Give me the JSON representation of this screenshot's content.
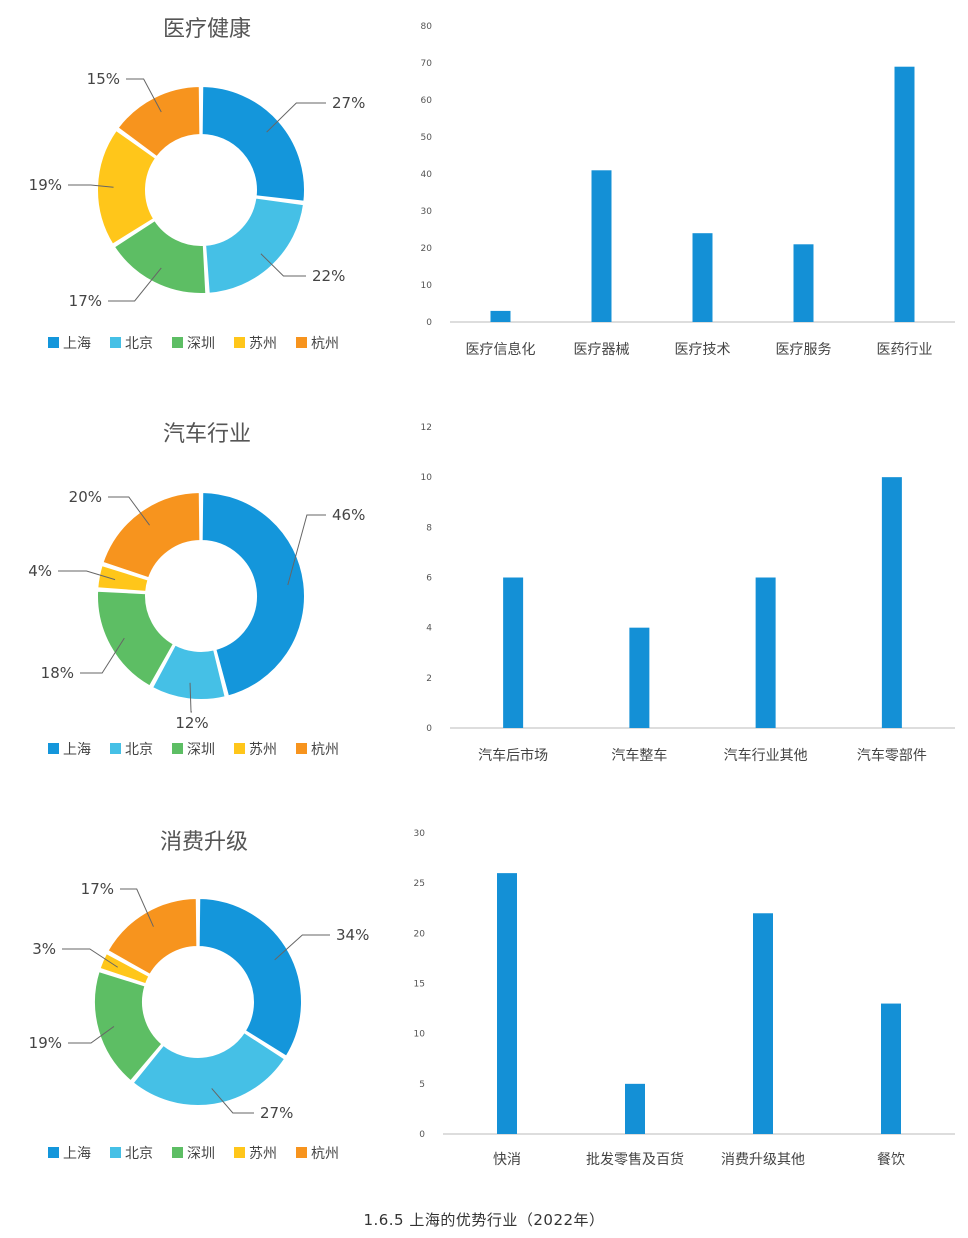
{
  "legend": [
    "上海",
    "北京",
    "深圳",
    "苏州",
    "杭州"
  ],
  "colors": {
    "上海": "#1496DB",
    "北京": "#45C0E6",
    "深圳": "#5DBE64",
    "苏州": "#FFC61A",
    "杭州": "#F7941E",
    "bar": "#1490D6"
  },
  "caption": "1.6.5   上海的优势行业（2022年）",
  "chart_data": [
    {
      "type": "pie",
      "title": "医疗健康",
      "categories": [
        "上海",
        "北京",
        "深圳",
        "苏州",
        "杭州"
      ],
      "values": [
        27,
        22,
        17,
        19,
        15
      ],
      "labels": [
        "27%",
        "22%",
        "17%",
        "19%",
        "15%"
      ]
    },
    {
      "type": "bar",
      "categories": [
        "医疗信息化",
        "医疗器械",
        "医疗技术",
        "医疗服务",
        "医药行业"
      ],
      "values": [
        3,
        41,
        24,
        21,
        69
      ],
      "ylim": [
        0,
        80
      ],
      "yticks": [
        "0",
        "10",
        "20",
        "30",
        "40",
        "50",
        "60",
        "70",
        "80"
      ]
    },
    {
      "type": "pie",
      "title": "汽车行业",
      "categories": [
        "上海",
        "北京",
        "深圳",
        "苏州",
        "杭州"
      ],
      "values": [
        46,
        12,
        18,
        4,
        20
      ],
      "labels": [
        "46%",
        "12%",
        "18%",
        "4%",
        "20%"
      ]
    },
    {
      "type": "bar",
      "categories": [
        "汽车后市场",
        "汽车整车",
        "汽车行业其他",
        "汽车零部件"
      ],
      "values": [
        6,
        4,
        6,
        10
      ],
      "ylim": [
        0,
        12
      ],
      "yticks": [
        "0",
        "2",
        "4",
        "6",
        "8",
        "10",
        "12"
      ]
    },
    {
      "type": "pie",
      "title": "消费升级",
      "categories": [
        "上海",
        "北京",
        "深圳",
        "苏州",
        "杭州"
      ],
      "values": [
        34,
        27,
        19,
        3,
        17
      ],
      "labels": [
        "34%",
        "27%",
        "19%",
        "3%",
        "17%"
      ]
    },
    {
      "type": "bar",
      "categories": [
        "快消",
        "批发零售及百货",
        "消费升级其他",
        "餐饮"
      ],
      "values": [
        26,
        5,
        22,
        13
      ],
      "ylim": [
        0,
        30
      ],
      "yticks": [
        "0",
        "5",
        "10",
        "15",
        "20",
        "25",
        "30"
      ]
    }
  ]
}
